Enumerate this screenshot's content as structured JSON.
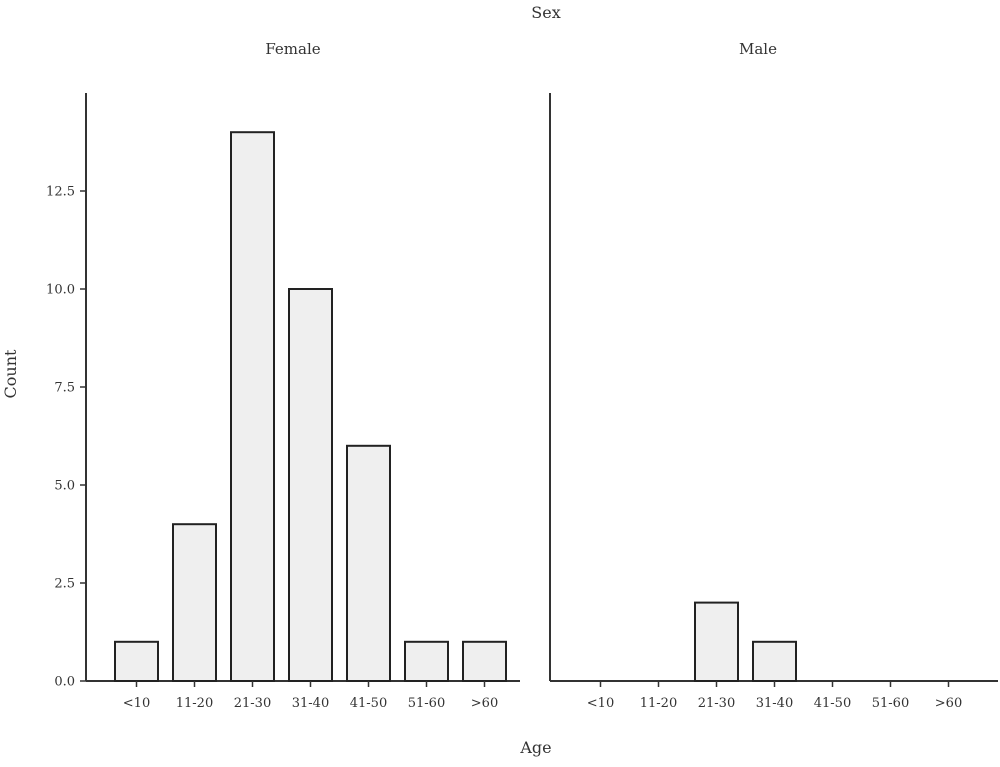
{
  "chart_data": {
    "type": "bar",
    "facet_label": "Sex",
    "xlabel": "Age",
    "ylabel": "Count",
    "categories": [
      "<10",
      "11-20",
      "21-30",
      "31-40",
      "41-50",
      "51-60",
      ">60"
    ],
    "ylim": [
      0,
      15
    ],
    "yticks": [
      "0.0",
      "2.5",
      "5.0",
      "7.5",
      "10.0",
      "12.5"
    ],
    "grid": false,
    "panels": [
      {
        "name": "Female",
        "values": [
          1,
          4,
          14,
          10,
          6,
          1,
          1
        ]
      },
      {
        "name": "Male",
        "values": [
          0,
          0,
          2,
          1,
          0,
          0,
          0
        ]
      }
    ],
    "colors": {
      "bar_fill": "#efefef",
      "bar_stroke": "#222222",
      "axis": "#333333"
    }
  }
}
